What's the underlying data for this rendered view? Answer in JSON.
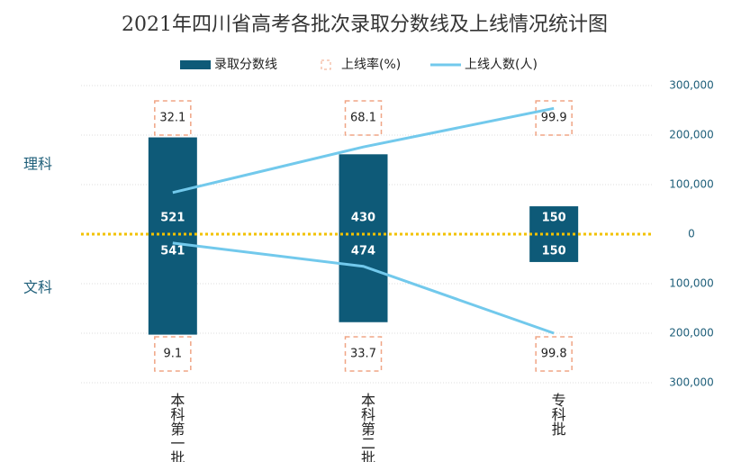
{
  "chart_data": {
    "type": "butterfly",
    "title": "2021年四川省高考各批次录取分数线及上线情况统计图",
    "categories": [
      "本科第一批",
      "本科第二批",
      "专科批"
    ],
    "groups": [
      "理科",
      "文科"
    ],
    "series": [
      {
        "name": "录取分数线",
        "type": "bar",
        "axis": "y2",
        "color": "#0e5a78",
        "values": [
          [
            521,
            430,
            150
          ],
          [
            541,
            474,
            150
          ]
        ]
      },
      {
        "name": "上线率(%)",
        "type": "label",
        "color": "#f0a585",
        "values": [
          [
            32.1,
            68.1,
            99.9
          ],
          [
            9.1,
            33.7,
            99.8
          ]
        ]
      },
      {
        "name": "上线人数(人)",
        "type": "line",
        "color": "#72c9ec",
        "values": [
          [
            84000,
            176000,
            254000
          ],
          [
            18000,
            65000,
            200000
          ]
        ]
      }
    ],
    "ylim": [
      -300000,
      300000
    ],
    "yticks": [
      {
        "value": 300000,
        "label": "300,000"
      },
      {
        "value": 200000,
        "label": "200,000"
      },
      {
        "value": 100000,
        "label": "100,000"
      },
      0,
      {
        "value": -100000,
        "label": "100,000"
      },
      {
        "value": -200000,
        "label": "200,000"
      },
      {
        "value": -300000,
        "label": "300,000"
      }
    ],
    "y2lim": [
      -800,
      800
    ],
    "grid": true
  }
}
